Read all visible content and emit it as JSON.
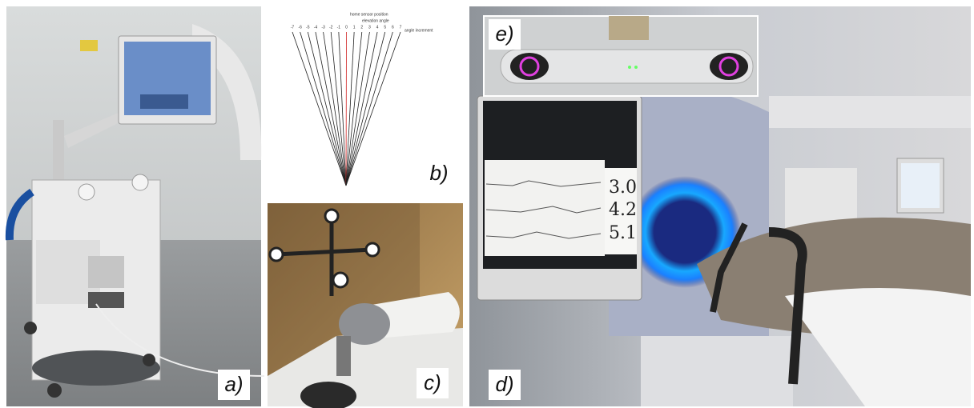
{
  "panels": {
    "a": {
      "label": "a)"
    },
    "b": {
      "label": "b)",
      "annotations": [
        "home sensor position",
        "elevation angle",
        "angle increment"
      ],
      "angle_labels": [
        "-7",
        "-6",
        "-5",
        "-4",
        "-3",
        "-2",
        "-1",
        "0",
        "1",
        "2",
        "3",
        "4",
        "5",
        "6",
        "7"
      ]
    },
    "c": {
      "label": "c)"
    },
    "d": {
      "label": "d)",
      "monitor_readings": [
        "3.0",
        "4.2",
        "5.1"
      ]
    },
    "e": {
      "label": "e)"
    }
  }
}
